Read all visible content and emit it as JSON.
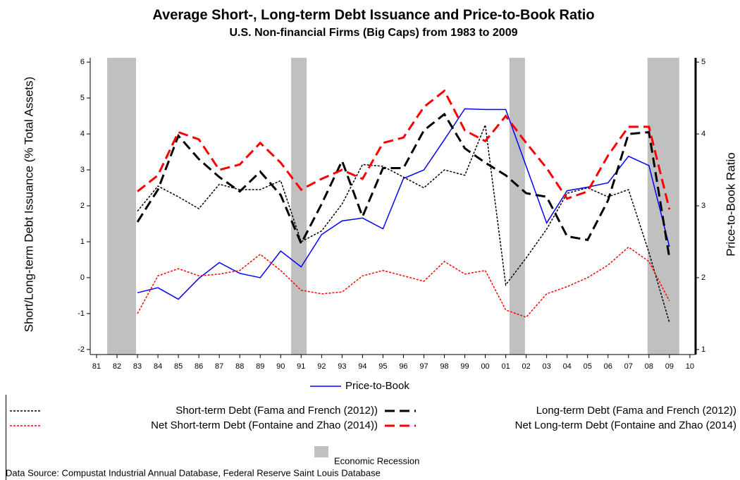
{
  "chart_data": {
    "type": "line",
    "title": "Average Short-, Long-term Debt Issuance and Price-to-Book Ratio",
    "subtitle": "U.S. Non-financial Firms (Big Caps) from 1983 to 2009",
    "ylabel": "Short/Long-term Debt Issuance (% Total Assets)",
    "y2label": "Price-to-Book Ratio",
    "source": "Data Source: Compustat Industrial Annual Database, Federal Reserve Saint Louis Database",
    "x": [
      1983,
      1984,
      1985,
      1986,
      1987,
      1988,
      1989,
      1990,
      1991,
      1992,
      1993,
      1994,
      1995,
      1996,
      1997,
      1998,
      1999,
      2000,
      2001,
      2002,
      2003,
      2004,
      2005,
      2006,
      2007,
      2008,
      2009
    ],
    "xlim": [
      1980.69,
      2010.28
    ],
    "xticks": [
      {
        "value": 1981,
        "label": "81"
      },
      {
        "value": 1982,
        "label": "82"
      },
      {
        "value": 1983,
        "label": "83"
      },
      {
        "value": 1984,
        "label": "84"
      },
      {
        "value": 1985,
        "label": "85"
      },
      {
        "value": 1986,
        "label": "86"
      },
      {
        "value": 1987,
        "label": "87"
      },
      {
        "value": 1988,
        "label": "88"
      },
      {
        "value": 1989,
        "label": "89"
      },
      {
        "value": 1990,
        "label": "90"
      },
      {
        "value": 1991,
        "label": "91"
      },
      {
        "value": 1992,
        "label": "92"
      },
      {
        "value": 1993,
        "label": "93"
      },
      {
        "value": 1994,
        "label": "94"
      },
      {
        "value": 1995,
        "label": "95"
      },
      {
        "value": 1996,
        "label": "96"
      },
      {
        "value": 1997,
        "label": "97"
      },
      {
        "value": 1998,
        "label": "98"
      },
      {
        "value": 1999,
        "label": "99"
      },
      {
        "value": 2000,
        "label": "00"
      },
      {
        "value": 2001,
        "label": "01"
      },
      {
        "value": 2002,
        "label": "02"
      },
      {
        "value": 2003,
        "label": "03"
      },
      {
        "value": 2004,
        "label": "04"
      },
      {
        "value": 2005,
        "label": "05"
      },
      {
        "value": 2006,
        "label": "06"
      },
      {
        "value": 2007,
        "label": "07"
      },
      {
        "value": 2008,
        "label": "08"
      },
      {
        "value": 2009,
        "label": "09"
      },
      {
        "value": 2010,
        "label": "10"
      }
    ],
    "ylim": [
      -2.14,
      6.12
    ],
    "yticks": [
      -2,
      -1,
      0,
      1,
      2,
      3,
      4,
      5,
      6
    ],
    "y2lim": [
      0.93,
      5.06
    ],
    "y2ticks": [
      1,
      2,
      3,
      4,
      5
    ],
    "recessions": {
      "label": "Economic Recession",
      "color": "#c0c0c0",
      "spans": [
        [
          1981.52,
          1982.93
        ],
        [
          1990.51,
          1991.27
        ],
        [
          2001.18,
          2001.94
        ],
        [
          2007.93,
          2009.48
        ]
      ]
    },
    "series": [
      {
        "name": "Price-to-Book",
        "color": "#0000ff",
        "style": "solid",
        "axis": "y2",
        "values": [
          1.79,
          1.86,
          1.7,
          1.99,
          2.21,
          2.06,
          2.0,
          2.37,
          2.15,
          2.6,
          2.79,
          2.83,
          2.68,
          3.38,
          3.5,
          3.92,
          4.35,
          4.34,
          4.34,
          3.55,
          2.76,
          3.21,
          3.26,
          3.32,
          3.69,
          3.56,
          2.43
        ]
      },
      {
        "name": "Short-term Debt (Fama and French (2012))",
        "color": "#000000",
        "style": "dotted",
        "values": [
          1.85,
          2.55,
          2.25,
          1.92,
          2.6,
          2.45,
          2.45,
          2.7,
          1.0,
          1.3,
          2.05,
          3.15,
          3.1,
          2.8,
          2.5,
          3.0,
          2.85,
          4.25,
          -0.2,
          0.55,
          1.35,
          2.35,
          2.5,
          2.25,
          2.45,
          0.7,
          -1.25
        ]
      },
      {
        "name": "Long-term Debt (Fama and French (2012))",
        "color": "#000000",
        "style": "dashed",
        "values": [
          1.55,
          2.45,
          3.95,
          3.3,
          2.8,
          2.4,
          2.95,
          2.3,
          0.95,
          2.05,
          3.25,
          1.7,
          3.05,
          3.05,
          4.1,
          4.55,
          3.6,
          3.2,
          2.85,
          2.35,
          2.25,
          1.15,
          1.05,
          2.15,
          4.0,
          4.05,
          0.55
        ]
      },
      {
        "name": "Net Short-term Debt (Fontaine and Zhao (2014))",
        "color": "#ff0000",
        "style": "dotted",
        "values": [
          -1.0,
          0.05,
          0.25,
          0.05,
          0.1,
          0.2,
          0.65,
          0.2,
          -0.35,
          -0.45,
          -0.4,
          0.05,
          0.2,
          0.05,
          -0.1,
          0.45,
          0.1,
          0.2,
          -0.9,
          -1.1,
          -0.45,
          -0.25,
          0.0,
          0.35,
          0.85,
          0.45,
          -0.65
        ]
      },
      {
        "name": "Net Long-term Debt (Fontaine and Zhao (2014)",
        "color": "#ff0000",
        "style": "dashed",
        "values": [
          2.4,
          2.85,
          4.05,
          3.85,
          3.0,
          3.15,
          3.75,
          3.2,
          2.45,
          2.75,
          3.0,
          2.75,
          3.75,
          3.9,
          4.75,
          5.2,
          4.1,
          3.8,
          4.5,
          3.75,
          3.05,
          2.2,
          2.4,
          3.4,
          4.2,
          4.2,
          1.9
        ]
      }
    ]
  }
}
